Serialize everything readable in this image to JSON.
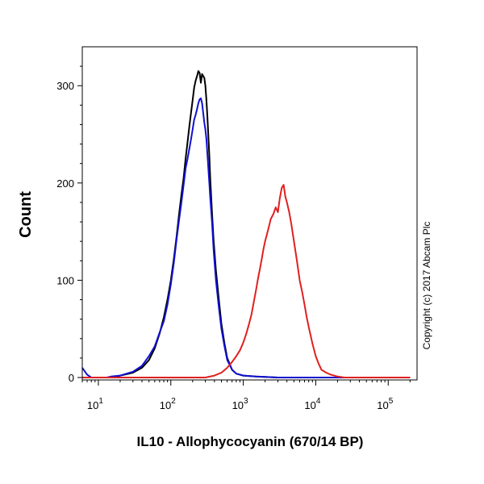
{
  "chart_data": {
    "type": "line",
    "title": "",
    "xlabel": "IL10 - Allophycocyanin (670/14 BP)",
    "ylabel": "Count",
    "x_scale": "log",
    "xlim": [
      6,
      250000
    ],
    "ylim": [
      0,
      340
    ],
    "x_ticks": [
      {
        "value": 10,
        "base": "10",
        "exp": "1"
      },
      {
        "value": 100,
        "base": "10",
        "exp": "2"
      },
      {
        "value": 1000,
        "base": "10",
        "exp": "3"
      },
      {
        "value": 10000,
        "base": "10",
        "exp": "4"
      },
      {
        "value": 100000,
        "base": "10",
        "exp": "5"
      }
    ],
    "y_ticks": [
      {
        "value": 0,
        "label": "0"
      },
      {
        "value": 100,
        "label": "100"
      },
      {
        "value": 200,
        "label": "200"
      },
      {
        "value": 300,
        "label": "300"
      }
    ],
    "grid": false,
    "series": [
      {
        "color": "#000000",
        "x": [
          15,
          20,
          30,
          40,
          50,
          60,
          70,
          80,
          90,
          100,
          110,
          120,
          130,
          140,
          150,
          160,
          170,
          180,
          190,
          200,
          210,
          220,
          230,
          240,
          250,
          260,
          270,
          280,
          290,
          300,
          310,
          320,
          330,
          340,
          350,
          370,
          390,
          420,
          460,
          500,
          550,
          600,
          700,
          800,
          1000,
          1500,
          3000,
          10000,
          60000,
          200000
        ],
        "y": [
          0,
          2,
          5,
          10,
          18,
          30,
          45,
          62,
          80,
          100,
          122,
          145,
          168,
          188,
          205,
          225,
          242,
          258,
          272,
          285,
          298,
          305,
          310,
          315,
          313,
          303,
          312,
          310,
          308,
          300,
          285,
          268,
          248,
          228,
          205,
          170,
          140,
          110,
          80,
          55,
          35,
          20,
          8,
          4,
          2,
          1,
          0,
          0,
          0,
          0
        ]
      },
      {
        "color": "#1010d0",
        "x": [
          6,
          7,
          8,
          9,
          11,
          13,
          15,
          20,
          30,
          40,
          50,
          60,
          70,
          80,
          90,
          100,
          110,
          120,
          130,
          140,
          150,
          160,
          170,
          180,
          190,
          200,
          210,
          220,
          230,
          240,
          250,
          260,
          270,
          280,
          290,
          300,
          310,
          320,
          330,
          340,
          350,
          370,
          390,
          420,
          460,
          500,
          550,
          600,
          700,
          800,
          1000,
          1500,
          3000,
          10000,
          60000,
          200000
        ],
        "y": [
          10,
          3,
          0,
          0,
          0,
          0,
          1,
          2,
          6,
          12,
          22,
          32,
          46,
          58,
          75,
          96,
          118,
          142,
          162,
          180,
          198,
          215,
          225,
          235,
          245,
          255,
          265,
          270,
          276,
          282,
          286,
          287,
          282,
          272,
          262,
          255,
          245,
          230,
          215,
          200,
          185,
          160,
          130,
          100,
          72,
          50,
          32,
          18,
          8,
          4,
          2,
          1,
          0,
          0,
          0,
          0
        ]
      },
      {
        "color": "#e02020",
        "x": [
          6,
          100,
          200,
          300,
          400,
          500,
          600,
          700,
          800,
          900,
          1000,
          1100,
          1200,
          1300,
          1400,
          1500,
          1600,
          1700,
          1800,
          1900,
          2000,
          2200,
          2400,
          2600,
          2800,
          3000,
          3200,
          3400,
          3600,
          3800,
          4000,
          4300,
          4600,
          5000,
          5500,
          6000,
          6500,
          7000,
          7500,
          8000,
          9000,
          10000,
          11000,
          12000,
          14000,
          16000,
          18000,
          20000,
          25000,
          30000,
          40000,
          60000,
          100000,
          200000
        ],
        "y": [
          0,
          0,
          0,
          0,
          2,
          5,
          10,
          16,
          22,
          28,
          36,
          45,
          55,
          65,
          78,
          90,
          102,
          112,
          122,
          132,
          140,
          152,
          163,
          168,
          175,
          170,
          185,
          195,
          198,
          186,
          180,
          170,
          158,
          140,
          120,
          100,
          88,
          75,
          62,
          52,
          35,
          22,
          14,
          8,
          5,
          3,
          2,
          1,
          0,
          0,
          0,
          0,
          0,
          0
        ]
      }
    ],
    "annotations": [
      "Copyright (c) 2017 Abcam Plc"
    ]
  }
}
